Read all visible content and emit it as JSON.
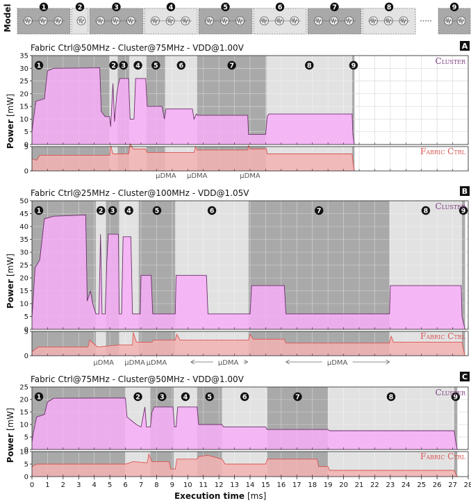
{
  "chart_data": {
    "type": "area",
    "model_label": "Model",
    "model_phases": [
      "1",
      "2",
      "3",
      "4",
      "5",
      "6",
      "7",
      "8",
      "9"
    ],
    "xlabel": "Execution time",
    "xunit": "[ms]",
    "ylabel": "Power",
    "yunit": "[mW]",
    "x_ticks": [
      0,
      1,
      2,
      3,
      4,
      5,
      6,
      7,
      8,
      9,
      10,
      11,
      12,
      13,
      14,
      15,
      16,
      17,
      18,
      19,
      20,
      21,
      22,
      23,
      24,
      25,
      26,
      27,
      28
    ],
    "xlim": [
      0,
      28
    ],
    "colors": {
      "cluster_fill": "#f7aef7",
      "cluster_line": "#6a2e6a",
      "fabric_fill": "#f3b3b3",
      "fabric_line": "#d9534f",
      "shade_dark": "#a9a9a9",
      "shade_light": "#e2e2e2",
      "cluster_text": "#7a3a80",
      "fabric_text": "#d9534f"
    },
    "panels": [
      {
        "letter": "A",
        "title": "Fabric Ctrl@50MHz - Cluster@75MHz - VDD@1.00V",
        "cluster_label": "Cluster",
        "fabric_label": "Fabric Ctrl",
        "cluster_ylim": [
          0,
          35
        ],
        "cluster_ticks": [
          0,
          5,
          10,
          15,
          20,
          25,
          30,
          35
        ],
        "fabric_ylim": [
          0,
          5
        ],
        "fabric_ticks": [
          0,
          5
        ],
        "data_end": 20.7,
        "phases": [
          {
            "label": "1",
            "start": 0.0,
            "end": 4.98,
            "shade": "dark"
          },
          {
            "label": "2",
            "start": 4.98,
            "end": 5.5,
            "shade": "light"
          },
          {
            "label": "3",
            "start": 5.5,
            "end": 6.25,
            "shade": "dark"
          },
          {
            "label": "4",
            "start": 6.25,
            "end": 7.35,
            "shade": "light"
          },
          {
            "label": "5",
            "start": 7.35,
            "end": 8.55,
            "shade": "dark"
          },
          {
            "label": "6",
            "start": 8.55,
            "end": 10.6,
            "shade": "light"
          },
          {
            "label": "7",
            "start": 10.6,
            "end": 15.05,
            "shade": "dark"
          },
          {
            "label": "8",
            "start": 15.05,
            "end": 20.55,
            "shade": "light"
          },
          {
            "label": "9",
            "start": 20.55,
            "end": 20.7,
            "shade": "dark"
          }
        ],
        "cluster_series": [
          [
            0,
            5
          ],
          [
            0.1,
            10
          ],
          [
            0.25,
            17
          ],
          [
            0.8,
            18
          ],
          [
            1.0,
            29
          ],
          [
            1.4,
            30
          ],
          [
            4.35,
            30.2
          ],
          [
            4.45,
            13
          ],
          [
            4.7,
            11
          ],
          [
            4.98,
            11
          ],
          [
            5.05,
            7
          ],
          [
            5.2,
            24
          ],
          [
            5.3,
            9
          ],
          [
            5.45,
            20
          ],
          [
            5.55,
            24
          ],
          [
            5.65,
            26
          ],
          [
            6.2,
            26
          ],
          [
            6.3,
            10
          ],
          [
            6.55,
            10
          ],
          [
            6.65,
            26
          ],
          [
            7.3,
            26
          ],
          [
            7.4,
            15
          ],
          [
            8.35,
            15
          ],
          [
            8.5,
            10
          ],
          [
            8.6,
            14
          ],
          [
            10.3,
            14
          ],
          [
            10.4,
            10
          ],
          [
            10.55,
            12
          ],
          [
            10.65,
            11.5
          ],
          [
            13.85,
            11.5
          ],
          [
            13.9,
            4
          ],
          [
            15.0,
            4
          ],
          [
            15.1,
            11
          ],
          [
            15.2,
            12
          ],
          [
            20.55,
            12
          ],
          [
            20.6,
            4
          ],
          [
            20.7,
            0
          ]
        ],
        "fabric_series": [
          [
            0,
            2.5
          ],
          [
            0.3,
            2.2
          ],
          [
            0.5,
            3.2
          ],
          [
            4.98,
            3.2
          ],
          [
            5.05,
            5.2
          ],
          [
            5.2,
            3.5
          ],
          [
            6.2,
            3.5
          ],
          [
            6.3,
            5.6
          ],
          [
            6.5,
            4.5
          ],
          [
            7.3,
            4.5
          ],
          [
            7.4,
            3.8
          ],
          [
            10.4,
            3.8
          ],
          [
            10.5,
            5.0
          ],
          [
            10.6,
            4.3
          ],
          [
            13.85,
            4.3
          ],
          [
            13.9,
            5.2
          ],
          [
            14.0,
            4.5
          ],
          [
            15.05,
            4.5
          ],
          [
            15.1,
            3.5
          ],
          [
            20.55,
            3.5
          ],
          [
            20.6,
            1.8
          ],
          [
            20.7,
            0
          ]
        ],
        "udma": [
          {
            "label": "μDMA",
            "at": 8.6,
            "span": null
          },
          {
            "label": "μDMA",
            "at": 10.6,
            "span": null
          },
          {
            "label": "μDMA",
            "at": 14.0,
            "span": null
          }
        ]
      },
      {
        "letter": "B",
        "title": "Fabric Ctrl@25MHz - Cluster@100MHz - VDD@1.05V",
        "cluster_label": "Cluster",
        "fabric_label": "Fabric Ctrl",
        "cluster_ylim": [
          0,
          50
        ],
        "cluster_ticks": [
          0,
          5,
          10,
          15,
          20,
          25,
          30,
          35,
          40,
          45,
          50
        ],
        "fabric_ylim": [
          0,
          5
        ],
        "fabric_ticks": [
          0,
          5
        ],
        "data_end": 27.8,
        "phases": [
          {
            "label": "1",
            "start": 0.0,
            "end": 4.1,
            "shade": "dark"
          },
          {
            "label": "2",
            "start": 4.1,
            "end": 4.75,
            "shade": "light"
          },
          {
            "label": "3",
            "start": 4.75,
            "end": 5.6,
            "shade": "dark"
          },
          {
            "label": "4",
            "start": 5.6,
            "end": 6.85,
            "shade": "light"
          },
          {
            "label": "5",
            "start": 6.85,
            "end": 9.2,
            "shade": "dark"
          },
          {
            "label": "6",
            "start": 9.2,
            "end": 13.9,
            "shade": "light"
          },
          {
            "label": "7",
            "start": 13.9,
            "end": 22.95,
            "shade": "dark"
          },
          {
            "label": "8",
            "start": 22.95,
            "end": 27.6,
            "shade": "light"
          },
          {
            "label": "9",
            "start": 27.6,
            "end": 27.8,
            "shade": "dark"
          }
        ],
        "cluster_series": [
          [
            0,
            5
          ],
          [
            0.05,
            9
          ],
          [
            0.2,
            24
          ],
          [
            0.5,
            27
          ],
          [
            0.8,
            43
          ],
          [
            1.4,
            44
          ],
          [
            3.45,
            44.5
          ],
          [
            3.55,
            11
          ],
          [
            3.75,
            15
          ],
          [
            3.9,
            10
          ],
          [
            4.1,
            6
          ],
          [
            4.3,
            6
          ],
          [
            4.4,
            37
          ],
          [
            4.5,
            6
          ],
          [
            4.7,
            6
          ],
          [
            4.8,
            26
          ],
          [
            4.9,
            37
          ],
          [
            5.55,
            37
          ],
          [
            5.6,
            6
          ],
          [
            5.75,
            6
          ],
          [
            5.85,
            36
          ],
          [
            6.35,
            36
          ],
          [
            6.45,
            6
          ],
          [
            6.95,
            6
          ],
          [
            7.0,
            21
          ],
          [
            7.65,
            21
          ],
          [
            7.75,
            6
          ],
          [
            9.2,
            6
          ],
          [
            9.25,
            21
          ],
          [
            11.2,
            21
          ],
          [
            11.3,
            6
          ],
          [
            14.0,
            6
          ],
          [
            14.1,
            17
          ],
          [
            16.2,
            17
          ],
          [
            16.3,
            6
          ],
          [
            22.95,
            6
          ],
          [
            23.0,
            17
          ],
          [
            27.55,
            17
          ],
          [
            27.6,
            5
          ],
          [
            27.8,
            0
          ]
        ],
        "fabric_series": [
          [
            0,
            0.8
          ],
          [
            0.4,
            1.8
          ],
          [
            3.6,
            1.8
          ],
          [
            3.7,
            3.2
          ],
          [
            4.2,
            1.8
          ],
          [
            5.6,
            2.2
          ],
          [
            6.45,
            2.2
          ],
          [
            6.5,
            4.8
          ],
          [
            6.7,
            2.8
          ],
          [
            7.7,
            2.8
          ],
          [
            7.8,
            3.2
          ],
          [
            9.2,
            3.2
          ],
          [
            9.3,
            4.4
          ],
          [
            9.5,
            3.2
          ],
          [
            13.9,
            3.2
          ],
          [
            14.0,
            4.4
          ],
          [
            14.2,
            3.4
          ],
          [
            16.2,
            3.4
          ],
          [
            16.3,
            2.6
          ],
          [
            22.95,
            2.6
          ],
          [
            23.05,
            4.0
          ],
          [
            23.2,
            2.8
          ],
          [
            27.6,
            2.8
          ],
          [
            27.7,
            1.2
          ],
          [
            27.8,
            0
          ]
        ],
        "udma": [
          {
            "label": "μDMA",
            "at": 4.6,
            "span": null
          },
          {
            "label": "μDMA",
            "at": 6.6,
            "span": null
          },
          {
            "label": "μDMA",
            "at": 8.0,
            "span": null
          },
          {
            "label": "μDMA",
            "at": 12.6,
            "span": [
              10.2,
              13.85
            ]
          },
          {
            "label": "μDMA",
            "at": 19.6,
            "span": [
              16.3,
              22.95
            ]
          }
        ]
      },
      {
        "letter": "C",
        "title": "Fabric Ctrl@75MHz - Cluster@50MHz - VDD@1.00V",
        "cluster_label": "Cluster",
        "fabric_label": "Fabric Ctrl",
        "cluster_ylim": [
          0,
          25
        ],
        "cluster_ticks": [
          0,
          5,
          10,
          15,
          20,
          25
        ],
        "fabric_ylim": [
          0,
          10
        ],
        "fabric_ticks": [
          0,
          5,
          10
        ],
        "data_end": 27.3,
        "phases": [
          {
            "label": "1",
            "start": 0.0,
            "end": 6.0,
            "shade": "dark"
          },
          {
            "label": "2",
            "start": 6.0,
            "end": 7.6,
            "shade": "light"
          },
          {
            "label": "3",
            "start": 7.6,
            "end": 9.1,
            "shade": "dark"
          },
          {
            "label": "4",
            "start": 9.1,
            "end": 10.6,
            "shade": "light"
          },
          {
            "label": "5",
            "start": 10.6,
            "end": 12.2,
            "shade": "dark"
          },
          {
            "label": "6",
            "start": 12.2,
            "end": 15.1,
            "shade": "light"
          },
          {
            "label": "7",
            "start": 15.1,
            "end": 19.0,
            "shade": "dark"
          },
          {
            "label": "8",
            "start": 19.0,
            "end": 27.1,
            "shade": "light"
          },
          {
            "label": "9",
            "start": 27.1,
            "end": 27.3,
            "shade": "dark"
          }
        ],
        "cluster_series": [
          [
            0,
            3
          ],
          [
            0.1,
            7
          ],
          [
            0.3,
            13
          ],
          [
            0.8,
            14
          ],
          [
            1.0,
            19
          ],
          [
            1.4,
            20.5
          ],
          [
            6.0,
            20.6
          ],
          [
            6.1,
            13
          ],
          [
            6.7,
            10
          ],
          [
            7.0,
            9
          ],
          [
            7.25,
            17
          ],
          [
            7.35,
            9
          ],
          [
            7.6,
            9
          ],
          [
            7.7,
            15
          ],
          [
            7.85,
            17
          ],
          [
            9.05,
            17
          ],
          [
            9.15,
            9
          ],
          [
            9.25,
            9
          ],
          [
            9.35,
            17
          ],
          [
            10.6,
            17
          ],
          [
            10.7,
            10
          ],
          [
            12.2,
            10
          ],
          [
            12.3,
            9
          ],
          [
            15.0,
            9
          ],
          [
            15.1,
            8
          ],
          [
            19.0,
            8
          ],
          [
            19.1,
            7.5
          ],
          [
            27.1,
            7.5
          ],
          [
            27.2,
            3
          ],
          [
            27.3,
            0
          ]
        ],
        "fabric_series": [
          [
            0,
            4
          ],
          [
            0.3,
            5
          ],
          [
            6.0,
            5
          ],
          [
            6.5,
            6
          ],
          [
            7.4,
            5.5
          ],
          [
            7.5,
            9
          ],
          [
            7.7,
            6
          ],
          [
            8.8,
            6
          ],
          [
            8.9,
            3
          ],
          [
            9.2,
            3
          ],
          [
            9.3,
            7
          ],
          [
            10.6,
            7
          ],
          [
            10.7,
            8
          ],
          [
            11.3,
            8.5
          ],
          [
            12.2,
            7
          ],
          [
            12.4,
            5
          ],
          [
            15.0,
            5
          ],
          [
            15.1,
            7
          ],
          [
            18.3,
            7
          ],
          [
            18.4,
            4
          ],
          [
            19.0,
            4
          ],
          [
            19.1,
            2.5
          ],
          [
            27.1,
            2.5
          ],
          [
            27.2,
            1
          ],
          [
            27.3,
            0
          ]
        ],
        "udma": []
      }
    ]
  }
}
